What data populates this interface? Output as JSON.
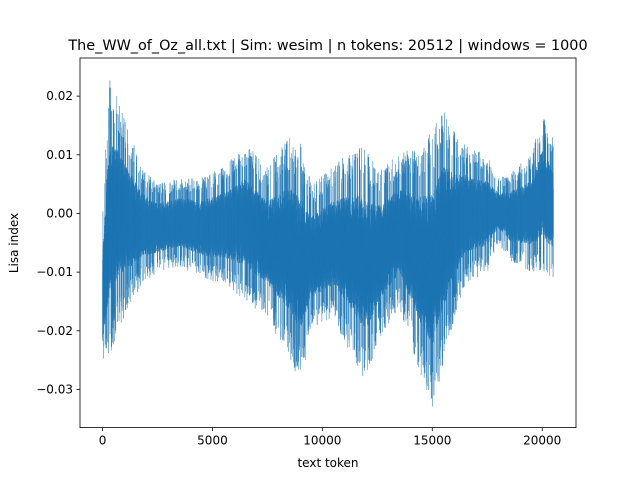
{
  "chart_data": {
    "type": "line",
    "title": "The_WW_of_Oz_all.txt | Sim: wesim | n tokens: 20512 | windows = 1000",
    "xlabel": "text token",
    "ylabel": "Lisa index",
    "xlim": [
      -1025,
      21537
    ],
    "ylim": [
      -0.0365,
      0.0265
    ],
    "x_ticks": [
      0,
      5000,
      10000,
      15000,
      20000
    ],
    "y_ticks": [
      -0.03,
      -0.02,
      -0.01,
      0.0,
      0.01,
      0.02
    ],
    "y_tick_labels": [
      "−0.03",
      "−0.02",
      "−0.01",
      "0.00",
      "0.01",
      "0.02"
    ],
    "grid": false,
    "series_color": "#1f77b4",
    "n_points": 20512,
    "envelope": {
      "x": [
        0,
        300,
        700,
        1200,
        1800,
        2500,
        3500,
        4500,
        5500,
        6500,
        7500,
        8500,
        9000,
        9500,
        10500,
        11500,
        12000,
        12500,
        13500,
        14500,
        15000,
        15500,
        16000,
        16500,
        17500,
        18000,
        18500,
        19500,
        20000,
        20512
      ],
      "upper": [
        0.0,
        0.023,
        0.02,
        0.014,
        0.008,
        0.005,
        0.006,
        0.006,
        0.008,
        0.012,
        0.008,
        0.013,
        0.012,
        0.005,
        0.008,
        0.012,
        0.011,
        0.008,
        0.01,
        0.012,
        0.014,
        0.018,
        0.014,
        0.012,
        0.01,
        0.006,
        0.007,
        0.01,
        0.017,
        0.013
      ],
      "lower": [
        -0.028,
        -0.025,
        -0.02,
        -0.016,
        -0.012,
        -0.01,
        -0.009,
        -0.011,
        -0.012,
        -0.015,
        -0.018,
        -0.025,
        -0.029,
        -0.02,
        -0.018,
        -0.026,
        -0.029,
        -0.022,
        -0.016,
        -0.028,
        -0.033,
        -0.026,
        -0.018,
        -0.012,
        -0.01,
        -0.005,
        -0.008,
        -0.01,
        -0.01,
        -0.012
      ]
    }
  }
}
